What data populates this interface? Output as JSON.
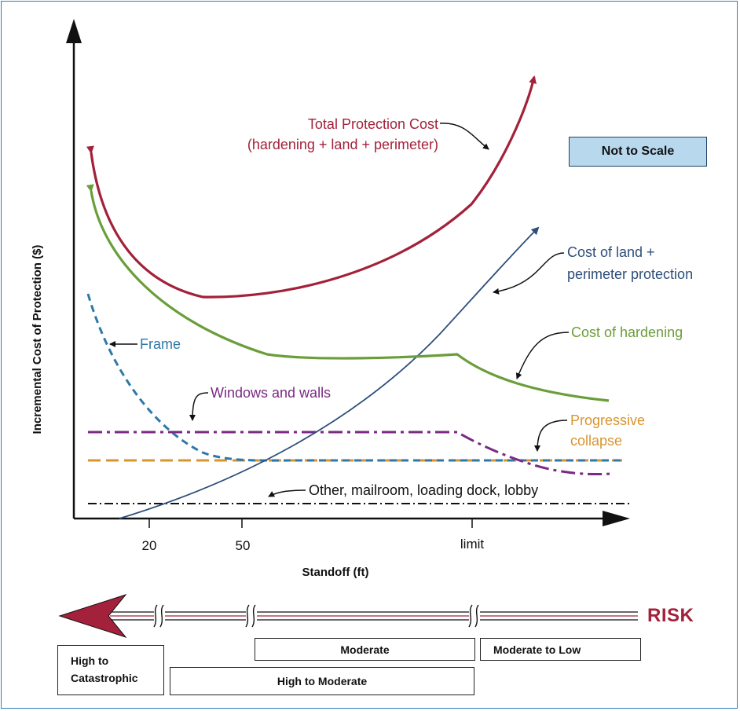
{
  "axes": {
    "ylabel": "Incremental Cost of Protection ($)",
    "xlabel": "Standoff (ft)",
    "x_ticks": [
      "20",
      "50",
      "limit"
    ]
  },
  "note_box": "Not to Scale",
  "curves": {
    "total": {
      "label_line1": "Total Protection Cost",
      "label_line2": "(hardening + land + perimeter)",
      "color": "#a3213a"
    },
    "land": {
      "label_line1": "Cost of land +",
      "label_line2": "perimeter protection",
      "color": "#2e4f7a"
    },
    "hardening": {
      "label": "Cost of hardening",
      "color": "#6a9e3a"
    },
    "frame": {
      "label": "Frame",
      "color": "#2e78a8"
    },
    "windows": {
      "label": "Windows and walls",
      "color": "#7a2a82"
    },
    "progressive": {
      "label_line1": "Progressive",
      "label_line2": "collapse",
      "color": "#d8952e"
    },
    "other": {
      "label": "Other, mailroom, loading dock, lobby",
      "color": "#111111"
    }
  },
  "risk": {
    "title": "RISK",
    "arrow_color": "#a3213a",
    "bands": {
      "high_cat_line1": "High to",
      "high_cat_line2": "Catastrophic",
      "high_mod": "High to Moderate",
      "moderate": "Moderate",
      "mod_low": "Moderate to Low"
    }
  }
}
